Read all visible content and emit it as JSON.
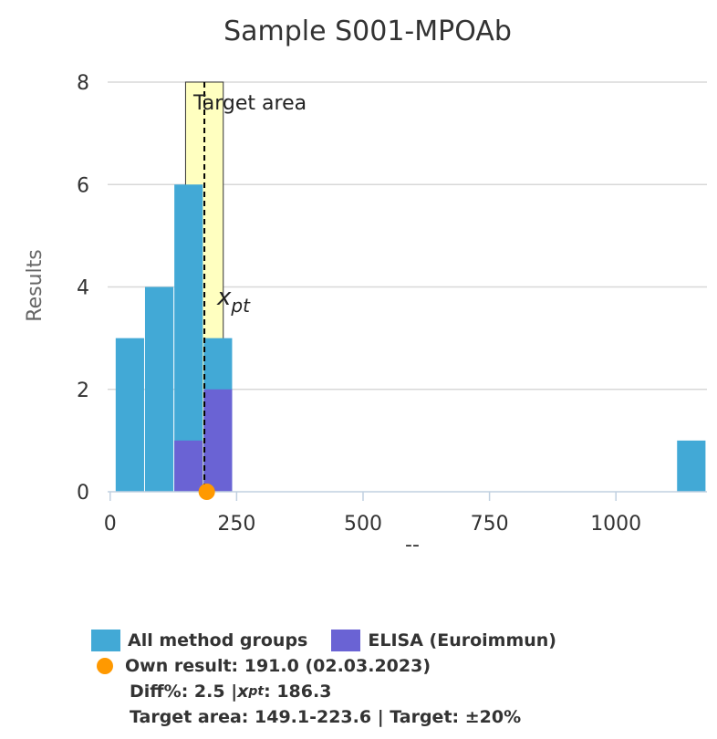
{
  "chart_data": {
    "type": "bar",
    "title": "Sample S001-MPOAb",
    "xlabel": "--",
    "ylabel": "Results",
    "xlim": [
      -5,
      1180
    ],
    "ylim": [
      0,
      8
    ],
    "x_ticks": [
      "0",
      "250",
      "500",
      "750",
      "1000"
    ],
    "x_tick_values": [
      0,
      250,
      500,
      750,
      1000
    ],
    "y_ticks": [
      "0",
      "2",
      "4",
      "6",
      "8"
    ],
    "y_tick_values": [
      0,
      2,
      4,
      6,
      8
    ],
    "grid": true,
    "series": [
      {
        "name": "All method groups",
        "color": "#42a9d6",
        "bins": [
          {
            "x0": 10,
            "x1": 68,
            "count": 3
          },
          {
            "x0": 68,
            "x1": 126,
            "count": 4
          },
          {
            "x0": 126,
            "x1": 184,
            "count": 6
          },
          {
            "x0": 184,
            "x1": 242,
            "count": 3
          },
          {
            "x0": 1120,
            "x1": 1178,
            "count": 1
          }
        ]
      },
      {
        "name": "ELISA (Euroimmun)",
        "color": "#6a63d4",
        "bins": [
          {
            "x0": 126,
            "x1": 184,
            "count": 1
          },
          {
            "x0": 184,
            "x1": 242,
            "count": 2
          }
        ]
      }
    ],
    "target_area": {
      "label": "Target area",
      "from": 149.1,
      "to": 223.6,
      "color": "#ffffc0"
    },
    "xpt": {
      "label_main": "x",
      "label_sub": "pt",
      "value": 186.3
    },
    "own_result": {
      "value": 191.0,
      "color": "#ff9900"
    },
    "legend_position": "bottom"
  },
  "legend": {
    "all_groups": "All method groups",
    "elisa": "ELISA (Euroimmun)",
    "own_result": "Own result: 191.0 (02.03.2023)",
    "diff_prefix": "Diff%: 2.5 | ",
    "xpt_main": "x",
    "xpt_sub": "pt",
    "xpt_value": ": 186.3",
    "target_line": "Target area: 149.1-223.6 | Target: ±20%"
  }
}
